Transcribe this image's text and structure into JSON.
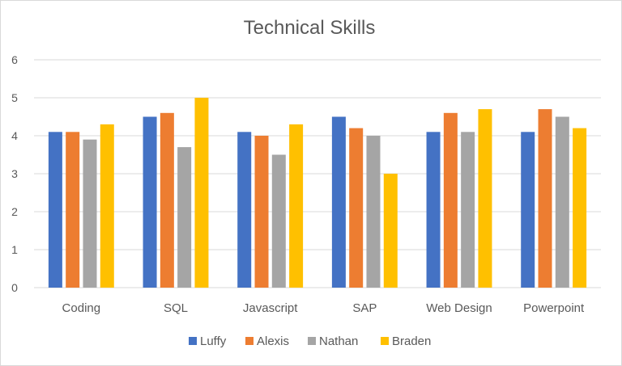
{
  "chart_data": {
    "type": "bar",
    "title": "Technical Skills",
    "xlabel": "",
    "ylabel": "",
    "ylim": [
      0,
      6
    ],
    "yticks": [
      0,
      1,
      2,
      3,
      4,
      5,
      6
    ],
    "grid": true,
    "legend_position": "bottom",
    "categories": [
      "Coding",
      "SQL",
      "Javascript",
      "SAP",
      "Web Design",
      "Powerpoint"
    ],
    "series": [
      {
        "name": "Luffy",
        "color": "#4472C4",
        "values": [
          4.1,
          4.5,
          4.1,
          4.5,
          4.1,
          4.1
        ]
      },
      {
        "name": "Alexis",
        "color": "#ED7D31",
        "values": [
          4.1,
          4.6,
          4.0,
          4.2,
          4.6,
          4.7
        ]
      },
      {
        "name": "Nathan",
        "color": "#A5A5A5",
        "values": [
          3.9,
          3.7,
          3.5,
          4.0,
          4.1,
          4.5
        ]
      },
      {
        "name": "Braden",
        "color": "#FFC000",
        "values": [
          4.3,
          5.0,
          4.3,
          3.0,
          4.7,
          4.2
        ]
      }
    ]
  }
}
